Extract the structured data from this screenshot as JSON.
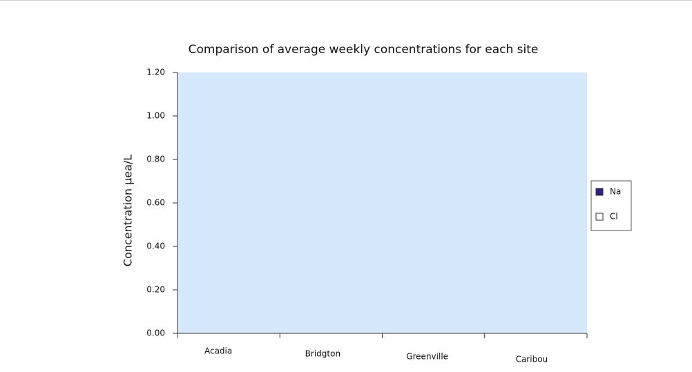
{
  "chart_data": {
    "type": "bar",
    "title": "Comparison of average weekly concentrations for each site",
    "y_label": "Concentration μea/L",
    "categories": [
      "Acadia",
      "Bridgton",
      "Greenville",
      "Caribou"
    ],
    "series": [
      {
        "name": "Na",
        "color": "#2e1f8a",
        "values": [
          null,
          null,
          null,
          null
        ]
      },
      {
        "name": "Cl",
        "color": "#ffffff",
        "values": [
          null,
          null,
          null,
          null
        ]
      }
    ],
    "ylim": [
      0,
      1.2
    ],
    "yticks": [
      {
        "value": 0,
        "label": "0.00"
      },
      {
        "value": 0.2,
        "label": "0.20"
      },
      {
        "value": 0.4,
        "label": "0.40"
      },
      {
        "value": 0.6,
        "label": "0.60"
      },
      {
        "value": 0.8,
        "label": "0.80"
      },
      {
        "value": 1.0,
        "label": "1.00"
      },
      {
        "value": 1.2,
        "label": "1.20"
      }
    ],
    "plot_background": "#d6e8fb",
    "legend": "right"
  }
}
